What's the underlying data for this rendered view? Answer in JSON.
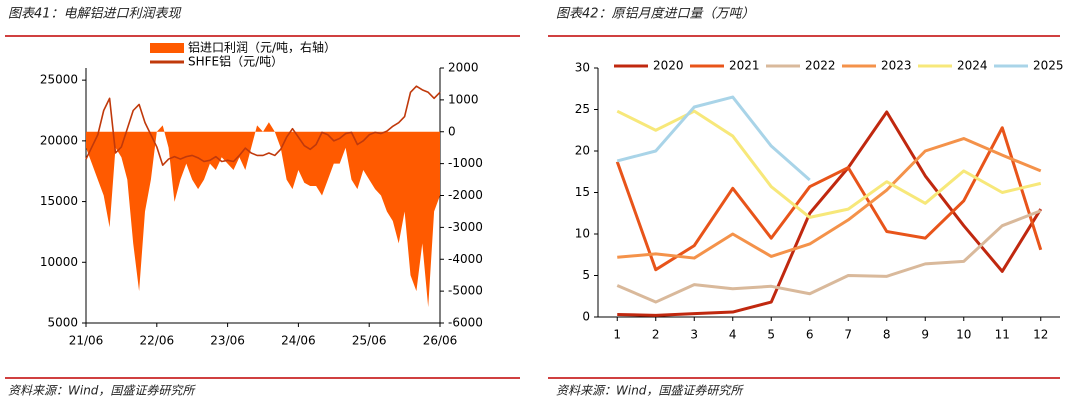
{
  "chart_data": [
    {
      "type": "combo",
      "title": "图表41：电解铝进口利润表现",
      "source": "资料来源：Wind，国盛证券研究所",
      "categories": [
        "21/06",
        null,
        null,
        null,
        null,
        null,
        null,
        null,
        null,
        null,
        null,
        null,
        "22/06",
        null,
        null,
        null,
        null,
        null,
        null,
        null,
        null,
        null,
        null,
        null,
        "23/06",
        null,
        null,
        null,
        null,
        null,
        null,
        null,
        null,
        null,
        null,
        null,
        "24/06",
        null,
        null,
        null,
        null,
        null,
        null,
        null,
        null,
        null,
        null,
        null,
        "25/06",
        null,
        null,
        null,
        null,
        null,
        null,
        null,
        null,
        null,
        null,
        null,
        "26/06"
      ],
      "ylim": [
        5000,
        26000
      ],
      "yticks": [
        5000,
        10000,
        15000,
        20000,
        25000
      ],
      "y2lim": [
        -6000,
        2000
      ],
      "y2ticks": [
        -6000,
        -5000,
        -4000,
        -3000,
        -2000,
        -1000,
        0,
        1000,
        2000
      ],
      "legend": "top",
      "series": [
        {
          "name": "铝进口利润（元/吨，右轴）",
          "type": "area",
          "axis": "y2",
          "color": "#ff5a00",
          "values": [
            -500,
            -1000,
            -1500,
            -2000,
            -3000,
            -500,
            -800,
            -1500,
            -3500,
            -5000,
            -2500,
            -1500,
            0,
            200,
            -500,
            -2200,
            -1500,
            -1000,
            -1500,
            -1800,
            -1500,
            -1000,
            -1200,
            -800,
            -1000,
            -1200,
            -800,
            -1200,
            -500,
            200,
            0,
            300,
            0,
            -500,
            -1500,
            -1800,
            -1200,
            -1600,
            -1700,
            -1700,
            -2000,
            -1500,
            -1000,
            -1000,
            -500,
            -1500,
            -1800,
            -1200,
            -1500,
            -1800,
            -2000,
            -2500,
            -2800,
            -3500,
            -2500,
            -4500,
            -5000,
            -3500,
            -5500,
            -2500,
            -2000
          ]
        },
        {
          "name": "SHFE铝（元/吨）",
          "type": "line",
          "color": "#c0390b",
          "values": [
            18500,
            19500,
            20500,
            22500,
            23500,
            19000,
            19500,
            21000,
            22500,
            23000,
            21500,
            20500,
            19500,
            18000,
            18500,
            18700,
            18500,
            18700,
            18800,
            18600,
            18300,
            18400,
            18700,
            18300,
            18400,
            18300,
            18800,
            19400,
            19000,
            18800,
            18800,
            19000,
            18800,
            19300,
            20300,
            21000,
            20300,
            19600,
            19300,
            19700,
            20700,
            20500,
            20000,
            20200,
            20600,
            20700,
            19700,
            20000,
            20500,
            20700,
            20600,
            20800,
            21200,
            21500,
            22000,
            24000,
            24500,
            24200,
            24000,
            23500,
            24000
          ]
        }
      ]
    },
    {
      "type": "line",
      "title": "图表42：原铝月度进口量（万吨）",
      "source": "资料来源：Wind，国盛证券研究所",
      "categories": [
        "1",
        "2",
        "3",
        "4",
        "5",
        "6",
        "7",
        "8",
        "9",
        "10",
        "11",
        "12"
      ],
      "ylim": [
        0,
        30
      ],
      "yticks": [
        0,
        5,
        10,
        15,
        20,
        25,
        30
      ],
      "legend": "top",
      "series": [
        {
          "name": "2020",
          "color": "#c0280f",
          "values": [
            0.3,
            0.2,
            0.4,
            0.6,
            1.8,
            12.5,
            18,
            24.7,
            17,
            11,
            5.5,
            13
          ]
        },
        {
          "name": "2021",
          "color": "#e8541a",
          "values": [
            18.7,
            5.7,
            8.6,
            15.5,
            9.5,
            15.7,
            18,
            10.3,
            9.5,
            14,
            22.8,
            8.1
          ]
        },
        {
          "name": "2022",
          "color": "#d9b99b",
          "values": [
            3.8,
            1.8,
            3.9,
            3.4,
            3.7,
            2.8,
            5,
            4.9,
            6.4,
            6.7,
            11,
            12.8
          ]
        },
        {
          "name": "2023",
          "color": "#f4924a",
          "values": [
            7.2,
            7.6,
            7.1,
            10,
            7.3,
            8.8,
            11.7,
            15.3,
            20,
            21.5,
            19.5,
            17.6
          ]
        },
        {
          "name": "2024",
          "color": "#f7e87a",
          "values": [
            24.8,
            22.5,
            24.8,
            21.8,
            15.7,
            12,
            13,
            16.3,
            13.7,
            17.6,
            15,
            16.1
          ]
        },
        {
          "name": "2025",
          "color": "#a9d4e8",
          "values": [
            18.8,
            20,
            25.3,
            26.5,
            20.6,
            16.5,
            null,
            null,
            null,
            null,
            null,
            null
          ]
        }
      ]
    }
  ]
}
